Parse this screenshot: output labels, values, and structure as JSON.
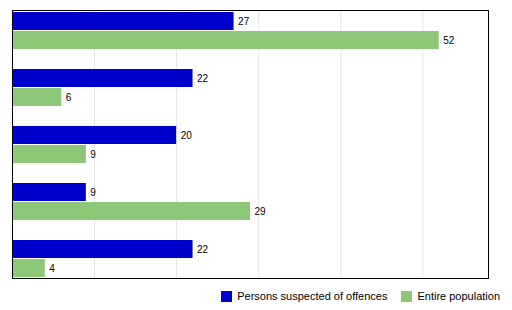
{
  "chart_data": {
    "type": "bar",
    "orientation": "horizontal",
    "categories": [
      null,
      null,
      null,
      null,
      null
    ],
    "series": [
      {
        "name": "Persons suspected of offences",
        "color": "#0000CC",
        "values": [
          27,
          22,
          20,
          9,
          22
        ]
      },
      {
        "name": "Entire population",
        "color": "#8CC878",
        "values": [
          52,
          6,
          9,
          29,
          4
        ]
      }
    ],
    "xlim": [
      0,
      58
    ],
    "xticks": [
      0,
      10,
      20,
      30,
      40,
      50
    ],
    "grid": true,
    "tick_labels": false,
    "data_labels": true,
    "legend": "lower right"
  }
}
